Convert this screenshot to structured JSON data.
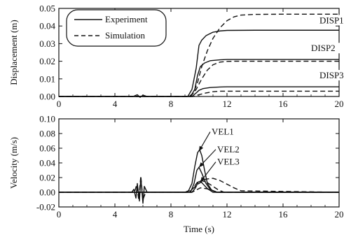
{
  "chart_data": [
    {
      "type": "line",
      "xlabel": "",
      "ylabel": "Displacement (m)",
      "xlim": [
        0,
        20
      ],
      "ylim": [
        0,
        0.05
      ],
      "xticks": [
        "0",
        "4",
        "8",
        "12",
        "16",
        "20"
      ],
      "xtick_values": [
        0,
        4,
        8,
        12,
        16,
        20
      ],
      "yticks": [
        "0.00",
        "0.01",
        "0.02",
        "0.03",
        "0.04",
        "0.05"
      ],
      "ytick_values": [
        0,
        0.01,
        0.02,
        0.03,
        0.04,
        0.05
      ],
      "legend": {
        "placement": "top-left",
        "entries": [
          {
            "label": "Experiment",
            "style": "solid"
          },
          {
            "label": "Simulation",
            "style": "dashed"
          }
        ]
      },
      "annotations": [
        {
          "text": "DISP1",
          "x": 18.6,
          "y": 0.0415
        },
        {
          "text": "DISP2",
          "x": 18.0,
          "y": 0.0257
        },
        {
          "text": "DISP3",
          "x": 18.6,
          "y": 0.0103
        }
      ],
      "series": [
        {
          "style": "solid",
          "x": [
            0,
            5.3,
            5.6,
            5.8,
            6.0,
            6.3,
            9.2,
            9.5,
            9.8,
            10.0,
            10.2,
            10.5,
            11.0,
            11.5,
            12.0,
            14.0,
            20.0
          ],
          "y": [
            0,
            0,
            0.001,
            -0.0005,
            0.0008,
            0,
            0,
            0.004,
            0.016,
            0.029,
            0.032,
            0.0345,
            0.0365,
            0.0372,
            0.0375,
            0.0376,
            0.0376
          ]
        },
        {
          "style": "dashed",
          "x": [
            0,
            9.3,
            9.6,
            9.9,
            10.2,
            10.6,
            11.0,
            11.5,
            12.0,
            12.5,
            13.0,
            14.0,
            16.0,
            20.0
          ],
          "y": [
            0,
            0,
            0.002,
            0.008,
            0.017,
            0.026,
            0.033,
            0.039,
            0.043,
            0.0452,
            0.0462,
            0.0466,
            0.0467,
            0.0467
          ]
        },
        {
          "style": "solid",
          "x": [
            0,
            9.4,
            9.7,
            9.9,
            10.1,
            10.4,
            10.8,
            11.5,
            12.0,
            14.0,
            20.0
          ],
          "y": [
            0,
            0,
            0.004,
            0.012,
            0.017,
            0.019,
            0.0203,
            0.0208,
            0.021,
            0.021,
            0.021
          ]
        },
        {
          "style": "dashed",
          "x": [
            0,
            9.4,
            9.8,
            10.2,
            10.6,
            11.0,
            11.5,
            12.0,
            12.5,
            14.0,
            20.0
          ],
          "y": [
            0,
            0,
            0.004,
            0.01,
            0.015,
            0.018,
            0.0195,
            0.0199,
            0.02,
            0.02,
            0.02
          ]
        },
        {
          "style": "solid",
          "x": [
            0,
            9.5,
            9.8,
            10.0,
            10.3,
            10.8,
            11.5,
            12.0,
            20.0
          ],
          "y": [
            0,
            0,
            0.002,
            0.0035,
            0.0045,
            0.0051,
            0.0054,
            0.0055,
            0.0055
          ]
        },
        {
          "style": "dashed",
          "x": [
            0,
            9.6,
            10.0,
            10.5,
            11.0,
            11.5,
            12.0,
            20.0
          ],
          "y": [
            0,
            0,
            0.001,
            0.002,
            0.0027,
            0.003,
            0.003,
            0.003
          ]
        }
      ]
    },
    {
      "type": "line",
      "xlabel": "Time (s)",
      "ylabel": "Velocity (m/s)",
      "xlim": [
        0,
        20
      ],
      "ylim": [
        -0.02,
        0.1
      ],
      "xticks": [
        "0",
        "4",
        "8",
        "12",
        "16",
        "20"
      ],
      "xtick_values": [
        0,
        4,
        8,
        12,
        16,
        20
      ],
      "yticks": [
        "-0.02",
        "0.00",
        "0.02",
        "0.04",
        "0.06",
        "0.08",
        "0.10"
      ],
      "ytick_values": [
        -0.02,
        0,
        0.02,
        0.04,
        0.06,
        0.08,
        0.1
      ],
      "annotations": [
        {
          "text": "VEL1",
          "x": 10.9,
          "y": 0.0785,
          "arrow_to": [
            10.0,
            0.056
          ]
        },
        {
          "text": "VEL2",
          "x": 11.3,
          "y": 0.0545,
          "arrow_to": [
            10.0,
            0.034
          ]
        },
        {
          "text": "VEL3",
          "x": 11.3,
          "y": 0.0375,
          "arrow_to": [
            10.1,
            0.014
          ]
        }
      ],
      "series": [
        {
          "style": "solid",
          "x": [
            0,
            5.2,
            5.35,
            5.5,
            5.6,
            5.75,
            5.85,
            6.0,
            6.1,
            6.3,
            9.2,
            9.5,
            9.7,
            9.9,
            10.05,
            10.2,
            10.4,
            10.6,
            10.9,
            11.3,
            12.0,
            20.0
          ],
          "y": [
            0,
            0,
            0.004,
            -0.008,
            0.012,
            -0.012,
            0.02,
            -0.015,
            0.008,
            0,
            0,
            0.012,
            0.035,
            0.054,
            0.058,
            0.05,
            0.03,
            0.012,
            0.003,
            0,
            0,
            0
          ]
        },
        {
          "style": "dashed",
          "x": [
            0,
            5.4,
            5.55,
            5.7,
            5.85,
            6.0,
            6.2,
            9.0,
            9.5,
            10.0,
            10.5,
            11.0,
            11.5,
            12.0,
            12.5,
            13.0,
            20.0
          ],
          "y": [
            0,
            0,
            0.01,
            -0.01,
            0.022,
            -0.01,
            0,
            0,
            0.004,
            0.012,
            0.018,
            0.019,
            0.016,
            0.011,
            0.006,
            0.002,
            0
          ]
        },
        {
          "style": "solid",
          "x": [
            0,
            9.4,
            9.65,
            9.85,
            10.0,
            10.2,
            10.5,
            10.8,
            11.2,
            20.0
          ],
          "y": [
            0,
            0,
            0.012,
            0.03,
            0.034,
            0.026,
            0.012,
            0.004,
            0,
            0
          ]
        },
        {
          "style": "dashed",
          "x": [
            0,
            9.3,
            9.6,
            9.9,
            10.2,
            10.6,
            11.0,
            11.4,
            11.8,
            20.0
          ],
          "y": [
            0,
            0,
            0.006,
            0.014,
            0.016,
            0.013,
            0.008,
            0.003,
            0,
            0
          ]
        },
        {
          "style": "solid",
          "x": [
            0,
            9.5,
            9.75,
            9.95,
            10.1,
            10.3,
            10.6,
            11.0,
            20.0
          ],
          "y": [
            0,
            0,
            0.006,
            0.014,
            0.015,
            0.011,
            0.005,
            0,
            0
          ]
        },
        {
          "style": "dashed",
          "x": [
            0,
            9.5,
            9.8,
            10.1,
            10.5,
            10.9,
            11.3,
            20.0
          ],
          "y": [
            0,
            0,
            0.003,
            0.006,
            0.005,
            0.003,
            0,
            0
          ]
        }
      ]
    }
  ]
}
